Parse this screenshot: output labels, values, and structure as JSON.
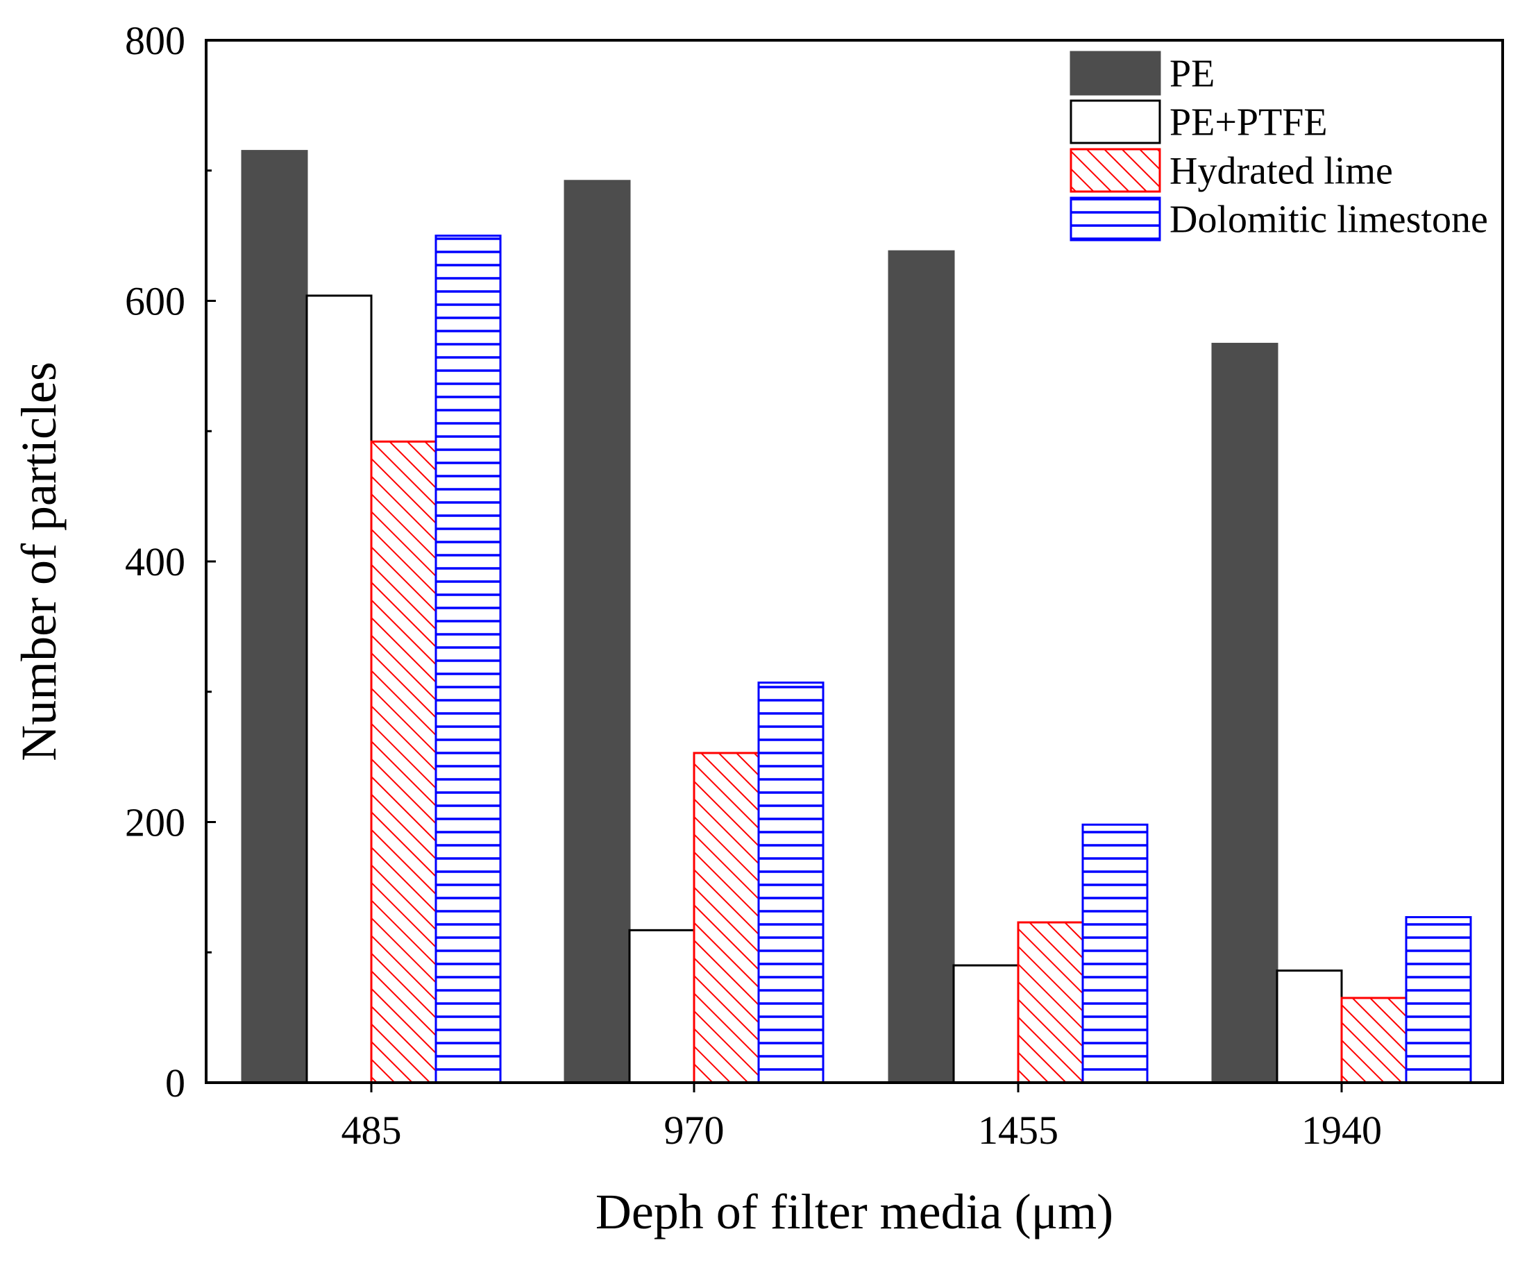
{
  "colors": {
    "pe": "#4d4d4d",
    "pe_ptfe": "#ffffff",
    "hydrated_lime": "#ff0000",
    "dolomitic_limestone": "#0000ff",
    "axis": "#000000"
  },
  "chart_data": {
    "type": "bar",
    "title": "",
    "xlabel": "Deph of filter media (μm)",
    "ylabel": "Number of particles",
    "categories": [
      "485",
      "970",
      "1455",
      "1940"
    ],
    "ylim": [
      0,
      800
    ],
    "yticks": [
      "0",
      "200",
      "400",
      "600",
      "800"
    ],
    "grid": false,
    "legend_position": "top-right",
    "series": [
      {
        "name": "PE",
        "values": [
          715,
          692,
          638,
          567
        ],
        "pattern": "solid"
      },
      {
        "name": "PE+PTFE",
        "values": [
          604,
          117,
          90,
          86
        ],
        "pattern": "empty"
      },
      {
        "name": "Hydrated lime",
        "values": [
          492,
          253,
          123,
          65
        ],
        "pattern": "diagonal-hatch"
      },
      {
        "name": "Dolomitic limestone",
        "values": [
          650,
          307,
          198,
          127
        ],
        "pattern": "horizontal-hatch"
      }
    ]
  }
}
